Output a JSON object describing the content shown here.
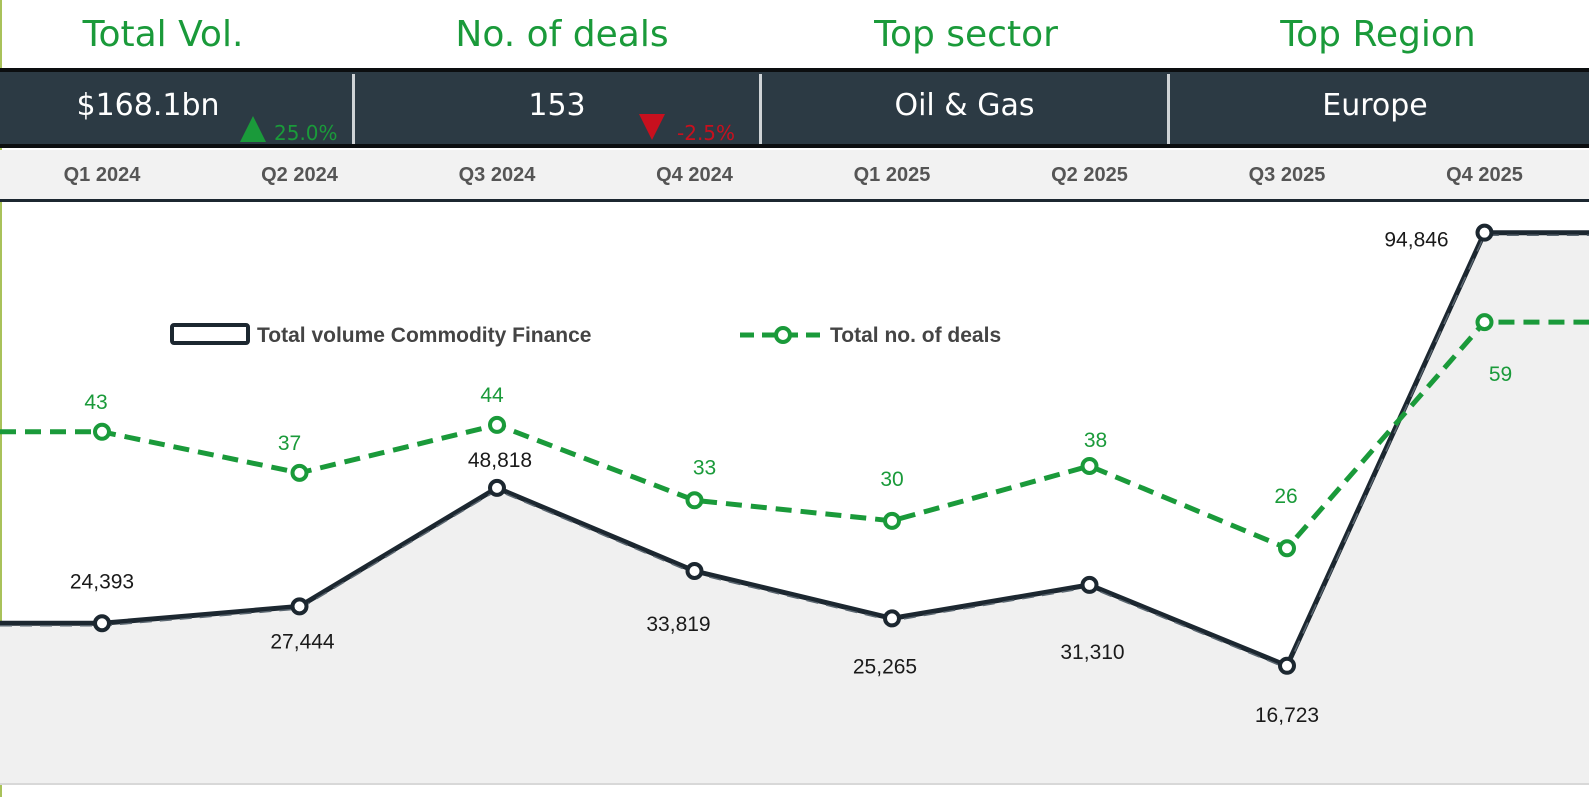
{
  "kpis": [
    {
      "title": "Total Vol.",
      "value": "$168.1bn",
      "delta": "25.0%",
      "direction": "up"
    },
    {
      "title": "No. of deals",
      "value": "153",
      "delta": "-2.5%",
      "direction": "down"
    },
    {
      "title": "Top sector",
      "value": "Oil & Gas"
    },
    {
      "title": "Top Region",
      "value": "Europe"
    }
  ],
  "colors": {
    "title_green": "#1a9a3a",
    "kpi_bar_bg": "#2c3a44",
    "volume_line": "#1c2730",
    "deals_line": "#1a9a3a",
    "area_fill": "#f0f0f0",
    "delta_up": "#1a9a3a",
    "delta_down": "#c8101e"
  },
  "icons": {
    "delta_up": "triangle-up-icon",
    "delta_down": "triangle-down-icon"
  },
  "chart_data": {
    "type": "line",
    "categories": [
      "Q1 2024",
      "Q2 2024",
      "Q3 2024",
      "Q4 2024",
      "Q1 2025",
      "Q2 2025",
      "Q3 2025",
      "Q4 2025"
    ],
    "series": [
      {
        "name": "Total volume Commodity Finance",
        "style": "solid line with area fill",
        "axis": "volume",
        "values": [
          24393,
          27444,
          48818,
          33819,
          25265,
          31310,
          16723,
          94846
        ],
        "labels": [
          "24,393",
          "27,444",
          "48,818",
          "33,819",
          "25,265",
          "31,310",
          "16,723",
          "94,846"
        ]
      },
      {
        "name": "Total no. of deals",
        "style": "dashed line with circle markers",
        "axis": "deals",
        "values": [
          43,
          37,
          44,
          33,
          30,
          38,
          26,
          59
        ],
        "labels": [
          "43",
          "37",
          "44",
          "33",
          "30",
          "38",
          "26",
          "59"
        ]
      }
    ],
    "title": "",
    "xlabel": "",
    "ylabel": "",
    "grid": false,
    "legend_position": "top-left"
  }
}
